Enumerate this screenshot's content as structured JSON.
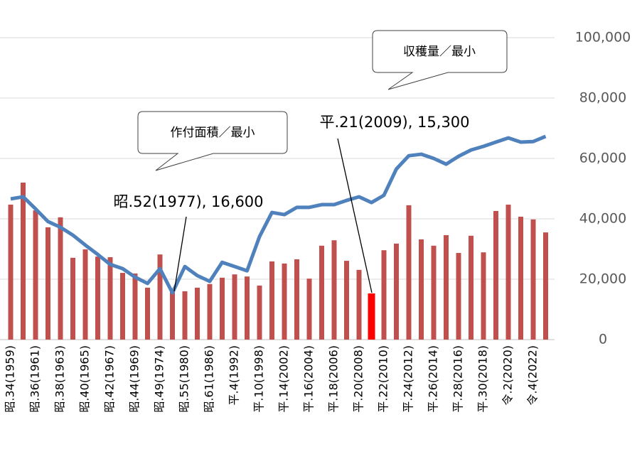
{
  "chart_data": {
    "type": "bar_line",
    "categories": [
      "昭.34(1959)",
      null,
      "昭.36(1961)",
      null,
      "昭.38(1963)",
      null,
      "昭.40(1965)",
      null,
      "昭.42(1967)",
      null,
      "昭.44(1969)",
      null,
      "昭.49(1974)",
      null,
      "昭.55(1980)",
      null,
      "昭.61(1986)",
      null,
      "平.4(1992)",
      null,
      "平.10(1998)",
      null,
      "平.14(2002)",
      null,
      "平.16(2004)",
      null,
      "平.18(2006)",
      null,
      "平.20(2008)",
      null,
      "平.22(2010)",
      null,
      "平.24(2012)",
      null,
      "平.26(2014)",
      null,
      "平.28(2016)",
      null,
      "平.30(2018)",
      null,
      "令.2(2020)",
      null,
      "令.4(2022)",
      null
    ],
    "series": [
      {
        "type": "bar",
        "color": "#c0504d",
        "highlight": {
          "index": 29,
          "color": "#ff0000"
        },
        "values": [
          44700,
          52000,
          42800,
          37200,
          40500,
          27100,
          29900,
          27500,
          27300,
          22100,
          21900,
          17200,
          28200,
          16600,
          16000,
          17200,
          18400,
          20500,
          21600,
          20900,
          17900,
          25900,
          25200,
          26600,
          20200,
          31100,
          32900,
          26100,
          23100,
          15300,
          29600,
          31800,
          44500,
          33200,
          31100,
          34600,
          28700,
          34400,
          28900,
          42600,
          44700,
          40700,
          39800,
          35500
        ]
      },
      {
        "type": "line",
        "color": "#4f81bd",
        "values": [
          46600,
          47300,
          43300,
          39100,
          37200,
          34600,
          31300,
          28200,
          24900,
          23500,
          20700,
          18600,
          23500,
          15500,
          24200,
          21200,
          19300,
          25600,
          24200,
          22800,
          34100,
          42100,
          41400,
          43800,
          43800,
          44700,
          44700,
          46100,
          47300,
          45400,
          47800,
          56500,
          60900,
          61400,
          60000,
          58100,
          60700,
          62800,
          64000,
          65400,
          66800,
          65400,
          65600,
          67300
        ]
      }
    ],
    "ylim": [
      0,
      100000
    ],
    "yticks": [
      0,
      {
        "value": 20000,
        "label": "20,000"
      },
      {
        "value": 40000,
        "label": "40,000"
      },
      {
        "value": 60000,
        "label": "60,000"
      },
      {
        "value": 80000,
        "label": "80,000"
      },
      {
        "value": 100000,
        "label": "100,000"
      }
    ],
    "grid": true,
    "annotations": [
      {
        "text": "昭.52(1977), 16,600",
        "index": 13
      },
      {
        "text": "平.21(2009), 15,300",
        "index": 29
      }
    ],
    "callouts": [
      "収穫量／最小",
      "作付面積／最小"
    ]
  }
}
